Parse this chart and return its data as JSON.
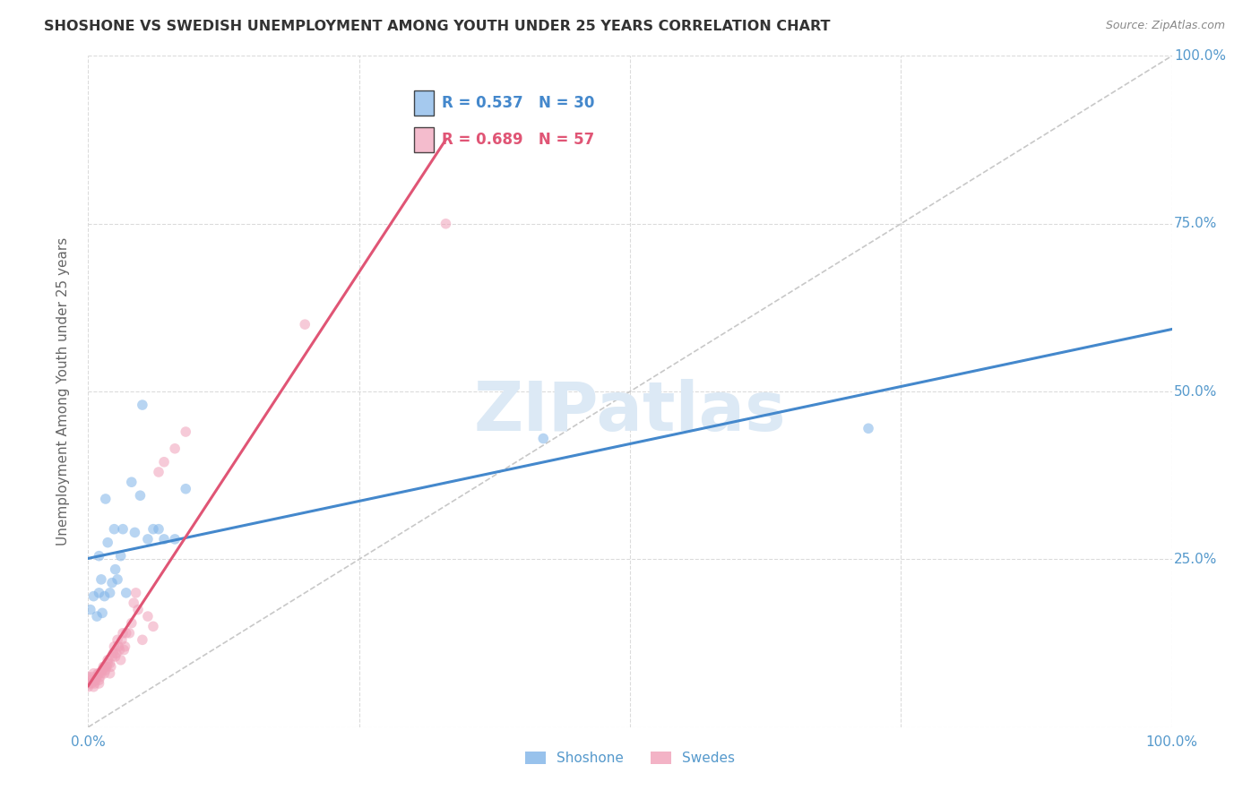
{
  "title": "SHOSHONE VS SWEDISH UNEMPLOYMENT AMONG YOUTH UNDER 25 YEARS CORRELATION CHART",
  "source": "Source: ZipAtlas.com",
  "ylabel": "Unemployment Among Youth under 25 years",
  "watermark": "ZIPatlas",
  "legend_shoshone_r": "R = 0.537",
  "legend_shoshone_n": "N = 30",
  "legend_swedes_r": "R = 0.689",
  "legend_swedes_n": "N = 57",
  "legend_label1": "Shoshone",
  "legend_label2": "Swedes",
  "shoshone_x": [
    0.002,
    0.005,
    0.008,
    0.01,
    0.01,
    0.012,
    0.013,
    0.015,
    0.016,
    0.018,
    0.02,
    0.022,
    0.024,
    0.025,
    0.027,
    0.03,
    0.032,
    0.035,
    0.04,
    0.043,
    0.048,
    0.05,
    0.055,
    0.06,
    0.065,
    0.07,
    0.08,
    0.09,
    0.42,
    0.72
  ],
  "shoshone_y": [
    0.175,
    0.195,
    0.165,
    0.2,
    0.255,
    0.22,
    0.17,
    0.195,
    0.34,
    0.275,
    0.2,
    0.215,
    0.295,
    0.235,
    0.22,
    0.255,
    0.295,
    0.2,
    0.365,
    0.29,
    0.345,
    0.48,
    0.28,
    0.295,
    0.295,
    0.28,
    0.28,
    0.355,
    0.43,
    0.445
  ],
  "swedes_x": [
    0.0,
    0.0,
    0.001,
    0.002,
    0.003,
    0.004,
    0.005,
    0.005,
    0.005,
    0.006,
    0.007,
    0.008,
    0.009,
    0.01,
    0.01,
    0.01,
    0.011,
    0.012,
    0.013,
    0.014,
    0.015,
    0.015,
    0.016,
    0.017,
    0.018,
    0.018,
    0.02,
    0.02,
    0.021,
    0.022,
    0.023,
    0.024,
    0.025,
    0.026,
    0.027,
    0.028,
    0.029,
    0.03,
    0.031,
    0.032,
    0.033,
    0.034,
    0.035,
    0.038,
    0.04,
    0.042,
    0.044,
    0.046,
    0.05,
    0.055,
    0.06,
    0.065,
    0.07,
    0.08,
    0.09,
    0.2,
    0.33
  ],
  "swedes_y": [
    0.06,
    0.075,
    0.065,
    0.07,
    0.065,
    0.075,
    0.06,
    0.068,
    0.08,
    0.065,
    0.07,
    0.075,
    0.08,
    0.065,
    0.07,
    0.08,
    0.075,
    0.08,
    0.085,
    0.09,
    0.08,
    0.09,
    0.085,
    0.09,
    0.095,
    0.1,
    0.08,
    0.095,
    0.09,
    0.105,
    0.11,
    0.12,
    0.105,
    0.11,
    0.13,
    0.12,
    0.115,
    0.1,
    0.13,
    0.14,
    0.115,
    0.12,
    0.14,
    0.14,
    0.155,
    0.185,
    0.2,
    0.175,
    0.13,
    0.165,
    0.15,
    0.38,
    0.395,
    0.415,
    0.44,
    0.6,
    0.75
  ],
  "shoshone_line": [
    0.0,
    1.0,
    0.155,
    0.645
  ],
  "swedes_line": [
    0.0,
    0.33,
    0.03,
    0.78
  ],
  "shoshone_color": "#7fb3e8",
  "swedes_color": "#f0a0b8",
  "shoshone_line_color": "#4488cc",
  "swedes_line_color": "#e05575",
  "ref_line_color": "#c8c8c8",
  "watermark_color": "#dce9f5",
  "background_color": "#ffffff",
  "grid_color": "#d8d8d8",
  "title_color": "#333333",
  "axis_tick_color": "#5599cc",
  "xlim": [
    0.0,
    1.0
  ],
  "ylim": [
    0.0,
    1.0
  ],
  "xticks": [
    0.0,
    0.25,
    0.5,
    0.75,
    1.0
  ],
  "yticks": [
    0.0,
    0.25,
    0.5,
    0.75,
    1.0
  ],
  "xticklabels": [
    "0.0%",
    "",
    "",
    "",
    "100.0%"
  ],
  "ytick_right_labels": [
    "",
    "25.0%",
    "50.0%",
    "75.0%",
    "100.0%"
  ],
  "marker_size": 70,
  "marker_alpha": 0.55,
  "line_width": 2.2
}
